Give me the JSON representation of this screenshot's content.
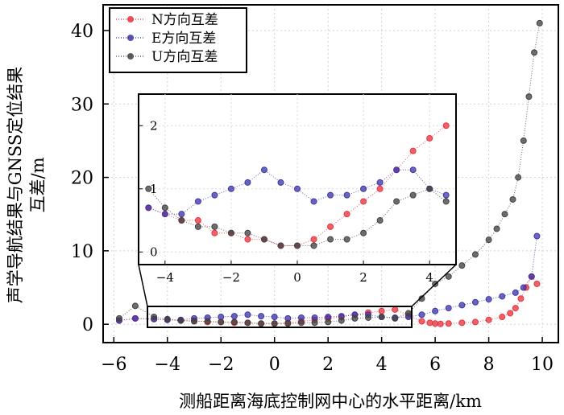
{
  "chart_data": {
    "type": "scatter",
    "xlabel": "测船距离海底控制网中心的水平距离/km",
    "ylabel_line1": "声学导航结果与GNSS定位结果",
    "ylabel_line2": "互差/m",
    "xlim": [
      -6.4,
      10.6
    ],
    "ylim": [
      -2.5,
      43.5
    ],
    "xticks": [
      "−6",
      "−4",
      "−2",
      "0",
      "2",
      "4",
      "6",
      "8",
      "10"
    ],
    "xtick_values": [
      -6,
      -4,
      -2,
      0,
      2,
      4,
      6,
      8,
      10
    ],
    "yticks": [
      "0",
      "10",
      "20",
      "30",
      "40"
    ],
    "ytick_values": [
      0,
      10,
      20,
      30,
      40
    ],
    "grid": true,
    "legend_position": "top-left",
    "series": [
      {
        "name": "N方向互差",
        "color": "#e8323c",
        "x": [
          -5.8,
          -5.2,
          -4.5,
          -4.0,
          -3.5,
          -3.0,
          -2.5,
          -2.0,
          -1.5,
          -1.0,
          -0.5,
          0.0,
          0.5,
          1.0,
          1.5,
          2.0,
          2.5,
          3.0,
          3.5,
          4.0,
          4.5,
          5.0,
          5.5,
          5.8,
          6.0,
          6.2,
          6.5,
          7.0,
          7.5,
          8.0,
          8.5,
          8.8,
          9.0,
          9.2,
          9.4,
          9.6,
          9.8
        ],
        "y": [
          0.5,
          0.8,
          0.7,
          0.6,
          0.5,
          0.5,
          0.3,
          0.3,
          0.2,
          0.2,
          0.1,
          0.1,
          0.2,
          0.4,
          0.6,
          0.8,
          1.0,
          1.3,
          1.6,
          1.8,
          2.0,
          1.2,
          0.4,
          0.2,
          0.1,
          0.05,
          0.1,
          0.2,
          0.3,
          0.6,
          1.0,
          1.5,
          2.2,
          3.5,
          5.0,
          6.5,
          5.5
        ]
      },
      {
        "name": "E方向互差",
        "color": "#3c34a8",
        "x": [
          -5.8,
          -5.2,
          -4.5,
          -4.0,
          -3.5,
          -3.0,
          -2.5,
          -2.0,
          -1.5,
          -1.0,
          -0.5,
          0.0,
          0.5,
          1.0,
          1.5,
          2.0,
          2.5,
          3.0,
          3.5,
          4.0,
          4.5,
          5.0,
          5.5,
          6.0,
          6.5,
          7.0,
          7.5,
          8.0,
          8.5,
          9.0,
          9.3,
          9.6,
          9.8
        ],
        "y": [
          0.5,
          0.8,
          0.7,
          0.6,
          0.6,
          0.8,
          0.9,
          1.0,
          1.1,
          1.3,
          1.1,
          1.0,
          0.8,
          0.9,
          0.9,
          1.0,
          1.1,
          1.3,
          1.3,
          1.0,
          0.9,
          1.0,
          1.3,
          1.8,
          2.2,
          2.6,
          3.0,
          3.4,
          3.8,
          4.3,
          5.0,
          6.5,
          12.0
        ]
      },
      {
        "name": "U方向互差",
        "color": "#404040",
        "x": [
          -5.8,
          -5.2,
          -4.5,
          -4.0,
          -3.5,
          -3.0,
          -2.5,
          -2.0,
          -1.5,
          -1.0,
          -0.5,
          0.0,
          0.5,
          1.0,
          1.5,
          2.0,
          2.5,
          3.0,
          3.5,
          4.0,
          4.5,
          5.0,
          5.5,
          6.0,
          6.5,
          7.0,
          7.5,
          8.0,
          8.3,
          8.6,
          8.9,
          9.1,
          9.3,
          9.5,
          9.7,
          9.9
        ],
        "y": [
          0.8,
          2.5,
          1.0,
          0.7,
          0.5,
          0.4,
          0.4,
          0.3,
          0.3,
          0.2,
          0.1,
          0.1,
          0.1,
          0.2,
          0.2,
          0.3,
          0.5,
          0.8,
          0.9,
          1.0,
          0.8,
          1.5,
          3.5,
          5.5,
          6.5,
          8.0,
          9.5,
          11.5,
          13.0,
          15.0,
          17.0,
          20.0,
          25.0,
          31.0,
          37.0,
          41.0
        ]
      }
    ],
    "inset": {
      "xlim": [
        -4.8,
        4.8
      ],
      "ylim": [
        -0.2,
        2.5
      ],
      "xticks": [
        "−4",
        "−2",
        "0",
        "2",
        "4"
      ],
      "xtick_values": [
        -4,
        -2,
        0,
        2,
        4
      ],
      "yticks": [
        "0",
        "1",
        "2"
      ],
      "ytick_values": [
        0,
        1,
        2
      ],
      "source_region_x": [
        -5.0,
        5.0
      ]
    }
  }
}
